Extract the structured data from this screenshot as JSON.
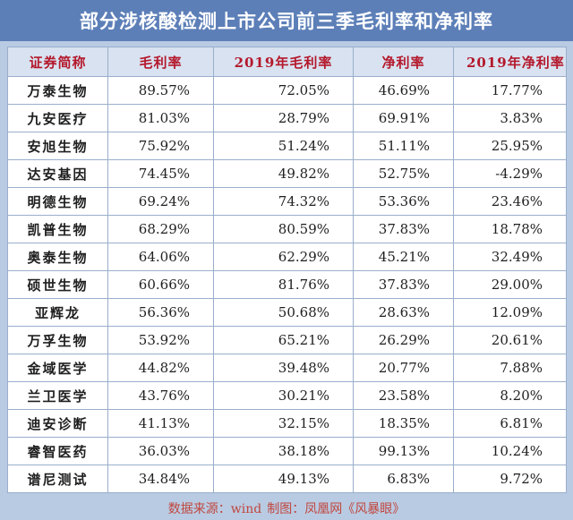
{
  "title": "部分涉核酸检测上市公司前三季毛利率和净利率",
  "columns": [
    "证券简称",
    "毛利率",
    "2019年毛利率",
    "净利率",
    "2019年净利率"
  ],
  "rows": [
    [
      "万泰生物",
      "89.57%",
      "72.05%",
      "46.69%",
      "17.77%"
    ],
    [
      "九安医疗",
      "81.03%",
      "28.79%",
      "69.91%",
      "3.83%"
    ],
    [
      "安旭生物",
      "75.92%",
      "51.24%",
      "51.11%",
      "25.95%"
    ],
    [
      "达安基因",
      "74.45%",
      "49.82%",
      "52.75%",
      "-4.29%"
    ],
    [
      "明德生物",
      "69.24%",
      "74.32%",
      "53.36%",
      "23.46%"
    ],
    [
      "凯普生物",
      "68.29%",
      "80.59%",
      "37.83%",
      "18.78%"
    ],
    [
      "奥泰生物",
      "64.06%",
      "62.29%",
      "45.21%",
      "32.49%"
    ],
    [
      "硕世生物",
      "60.66%",
      "81.76%",
      "37.83%",
      "29.00%"
    ],
    [
      "亚辉龙",
      "56.36%",
      "50.68%",
      "28.63%",
      "12.09%"
    ],
    [
      "万孚生物",
      "53.92%",
      "65.21%",
      "26.29%",
      "20.61%"
    ],
    [
      "金域医学",
      "44.82%",
      "39.48%",
      "20.77%",
      "7.88%"
    ],
    [
      "兰卫医学",
      "43.76%",
      "30.21%",
      "23.58%",
      "8.20%"
    ],
    [
      "迪安诊断",
      "41.13%",
      "32.15%",
      "18.35%",
      "6.81%"
    ],
    [
      "睿智医药",
      "36.03%",
      "38.18%",
      "99.13%",
      "10.24%"
    ],
    [
      "谱尼测试",
      "34.84%",
      "49.13%",
      "6.83%",
      "9.72%"
    ]
  ],
  "footer": {
    "source": "数据来源：wind",
    "made_by": "制图：凤凰网《风暴眼》"
  },
  "colors": {
    "title_bg": "#5d7fb8",
    "frame_bg": "#b9cbe3",
    "header_bg": "#d8e2f0",
    "header_text": "#b4182c",
    "footer_text": "#c0473e"
  }
}
